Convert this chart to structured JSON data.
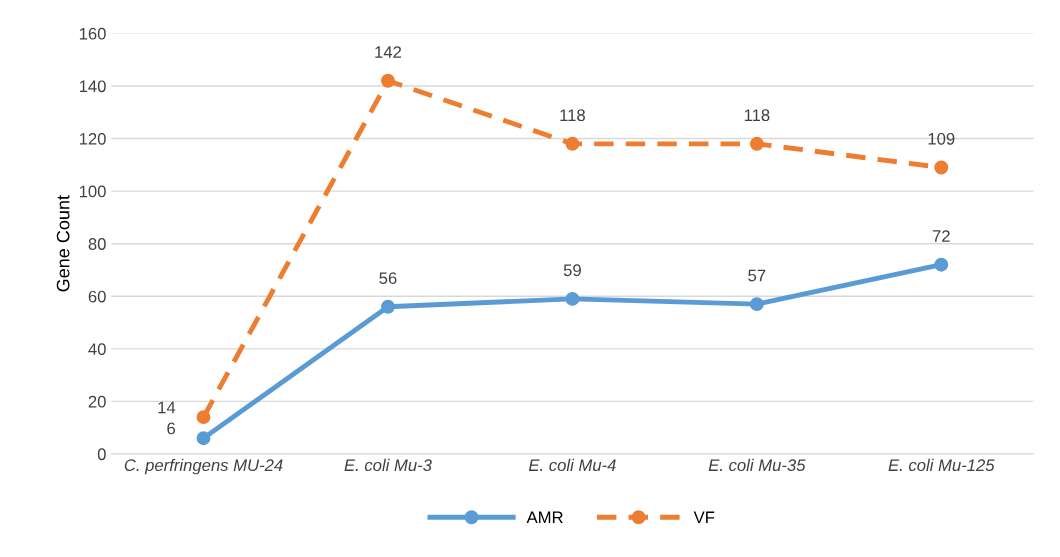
{
  "chart_data": {
    "type": "line",
    "ylabel": "Gene Count",
    "categories": [
      "C. perfringens MU-24",
      "E. coli Mu-3",
      "E. coli Mu-4",
      "E. coli Mu-35",
      "E. coli Mu-125"
    ],
    "series": [
      {
        "name": "AMR",
        "color": "#5b9bd5",
        "values": [
          6,
          56,
          59,
          57,
          72
        ],
        "line_style": "solid"
      },
      {
        "name": "VF",
        "color": "#ed7d31",
        "values": [
          14,
          142,
          118,
          118,
          109
        ],
        "line_style": "dashed"
      }
    ],
    "ylim": [
      0,
      160
    ],
    "yticks": [
      0,
      20,
      40,
      60,
      80,
      100,
      120,
      140,
      160
    ],
    "grid": "y",
    "legend": "bottom",
    "marker": "circle",
    "data_labels": true
  }
}
